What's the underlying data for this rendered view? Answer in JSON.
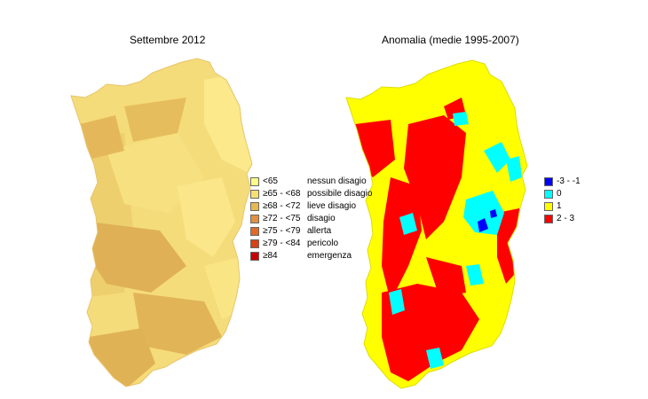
{
  "maps": {
    "left_title": "Settembre 2012",
    "right_title": "Anomalia (medie 1995-2007)"
  },
  "legend_left": [
    {
      "range": "<65",
      "label": "nessun disagio",
      "color": "#ffff88"
    },
    {
      "range": "≥65 - <68",
      "label": "possibile disagio",
      "color": "#f8e070"
    },
    {
      "range": "≥68 - <72",
      "label": "lieve disagio",
      "color": "#e8b850"
    },
    {
      "range": "≥72 - <75",
      "label": "disagio",
      "color": "#e09040"
    },
    {
      "range": "≥75 - <79",
      "label": "allerta",
      "color": "#e06a28"
    },
    {
      "range": "≥79 - <84",
      "label": "pericolo",
      "color": "#d84018"
    },
    {
      "range": "≥84",
      "label": "emergenza",
      "color": "#c80000"
    }
  ],
  "legend_right": [
    {
      "range": "-3 - -1",
      "color": "#0000ff"
    },
    {
      "range": "0",
      "color": "#00ffff"
    },
    {
      "range": "1",
      "color": "#ffff00"
    },
    {
      "range": "2 - 3",
      "color": "#ff0000"
    }
  ]
}
